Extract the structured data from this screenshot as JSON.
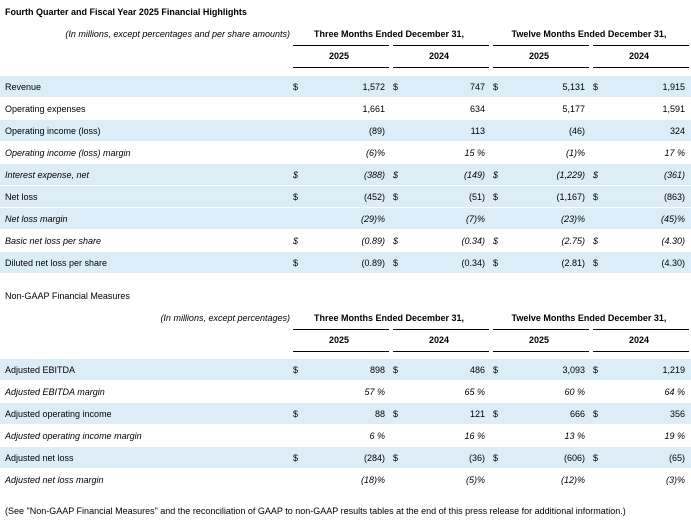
{
  "title": "Fourth Quarter and Fiscal Year 2025 Financial Highlights",
  "tables": [
    {
      "note": "(In millions, except percentages and per share amounts)",
      "groups": [
        "Three Months Ended December 31,",
        "Twelve Months Ended December 31,"
      ],
      "years": [
        "2025",
        "2024",
        "2025",
        "2024"
      ],
      "rows": [
        {
          "label": "Revenue",
          "shaded": true,
          "italic": false,
          "cells": [
            {
              "currency": "$",
              "value": "1,572"
            },
            {
              "currency": "$",
              "value": "747"
            },
            {
              "currency": "$",
              "value": "5,131"
            },
            {
              "currency": "$",
              "value": "1,915"
            }
          ]
        },
        {
          "label": "Operating expenses",
          "shaded": false,
          "italic": false,
          "cells": [
            {
              "value": "1,661"
            },
            {
              "value": "634"
            },
            {
              "value": "5,177"
            },
            {
              "value": "1,591"
            }
          ]
        },
        {
          "label": "Operating income (loss)",
          "shaded": true,
          "italic": false,
          "cells": [
            {
              "value": "(89)"
            },
            {
              "value": "113"
            },
            {
              "value": "(46)"
            },
            {
              "value": "324"
            }
          ]
        },
        {
          "label": "Operating income (loss) margin",
          "shaded": false,
          "italic": true,
          "cells": [
            {
              "value": "(6)%"
            },
            {
              "value": "15 %"
            },
            {
              "value": "(1)%"
            },
            {
              "value": "17 %"
            }
          ]
        },
        {
          "label": "Interest expense, net",
          "shaded": true,
          "italic": true,
          "cells": [
            {
              "currency": "$",
              "value": "(388)"
            },
            {
              "currency": "$",
              "value": "(149)"
            },
            {
              "currency": "$",
              "value": "(1,229)"
            },
            {
              "currency": "$",
              "value": "(361)"
            }
          ]
        },
        {
          "label": "Net loss",
          "shaded": true,
          "italic": false,
          "cells": [
            {
              "currency": "$",
              "value": "(452)"
            },
            {
              "currency": "$",
              "value": "(51)"
            },
            {
              "currency": "$",
              "value": "(1,167)"
            },
            {
              "currency": "$",
              "value": "(863)"
            }
          ]
        },
        {
          "label": "Net loss margin",
          "shaded": true,
          "italic": true,
          "cells": [
            {
              "value": "(29)%"
            },
            {
              "value": "(7)%"
            },
            {
              "value": "(23)%"
            },
            {
              "value": "(45)%"
            }
          ]
        },
        {
          "label": "Basic net loss per share",
          "shaded": false,
          "italic": true,
          "cells": [
            {
              "currency": "$",
              "value": "(0.89)"
            },
            {
              "currency": "$",
              "value": "(0.34)"
            },
            {
              "currency": "$",
              "value": "(2.75)"
            },
            {
              "currency": "$",
              "value": "(4.30)"
            }
          ]
        },
        {
          "label": "Diluted net loss per share",
          "shaded": true,
          "italic": false,
          "cells": [
            {
              "currency": "$",
              "value": "(0.89)"
            },
            {
              "currency": "$",
              "value": "(0.34)"
            },
            {
              "currency": "$",
              "value": "(2.81)"
            },
            {
              "currency": "$",
              "value": "(4.30)"
            }
          ]
        }
      ]
    },
    {
      "heading": "Non-GAAP Financial Measures",
      "note": "(In millions, except percentages)",
      "groups": [
        "Three Months Ended December 31,",
        "Twelve Months Ended December 31,"
      ],
      "years": [
        "2025",
        "2024",
        "2025",
        "2024"
      ],
      "rows": [
        {
          "label": "Adjusted EBITDA",
          "shaded": true,
          "italic": false,
          "cells": [
            {
              "currency": "$",
              "value": "898"
            },
            {
              "currency": "$",
              "value": "486"
            },
            {
              "currency": "$",
              "value": "3,093"
            },
            {
              "currency": "$",
              "value": "1,219"
            }
          ]
        },
        {
          "label": "Adjusted EBITDA margin",
          "shaded": false,
          "italic": true,
          "cells": [
            {
              "value": "57 %"
            },
            {
              "value": "65 %"
            },
            {
              "value": "60 %"
            },
            {
              "value": "64 %"
            }
          ]
        },
        {
          "label": "Adjusted operating income",
          "shaded": true,
          "italic": false,
          "cells": [
            {
              "currency": "$",
              "value": "88"
            },
            {
              "currency": "$",
              "value": "121"
            },
            {
              "currency": "$",
              "value": "666"
            },
            {
              "currency": "$",
              "value": "356"
            }
          ]
        },
        {
          "label": "Adjusted operating income margin",
          "shaded": false,
          "italic": true,
          "cells": [
            {
              "value": "6 %"
            },
            {
              "value": "16 %"
            },
            {
              "value": "13 %"
            },
            {
              "value": "19 %"
            }
          ]
        },
        {
          "label": "Adjusted net loss",
          "shaded": true,
          "italic": false,
          "cells": [
            {
              "currency": "$",
              "value": "(284)"
            },
            {
              "currency": "$",
              "value": "(36)"
            },
            {
              "currency": "$",
              "value": "(606)"
            },
            {
              "currency": "$",
              "value": "(65)"
            }
          ]
        },
        {
          "label": "Adjusted net loss margin",
          "shaded": false,
          "italic": true,
          "cells": [
            {
              "value": "(18)%"
            },
            {
              "value": "(5)%"
            },
            {
              "value": "(12)%"
            },
            {
              "value": "(3)%"
            }
          ]
        }
      ]
    }
  ],
  "footnote": "(See \"Non-GAAP Financial Measures\" and the reconciliation of GAAP to non-GAAP results tables at the end of this press release for additional information.)"
}
